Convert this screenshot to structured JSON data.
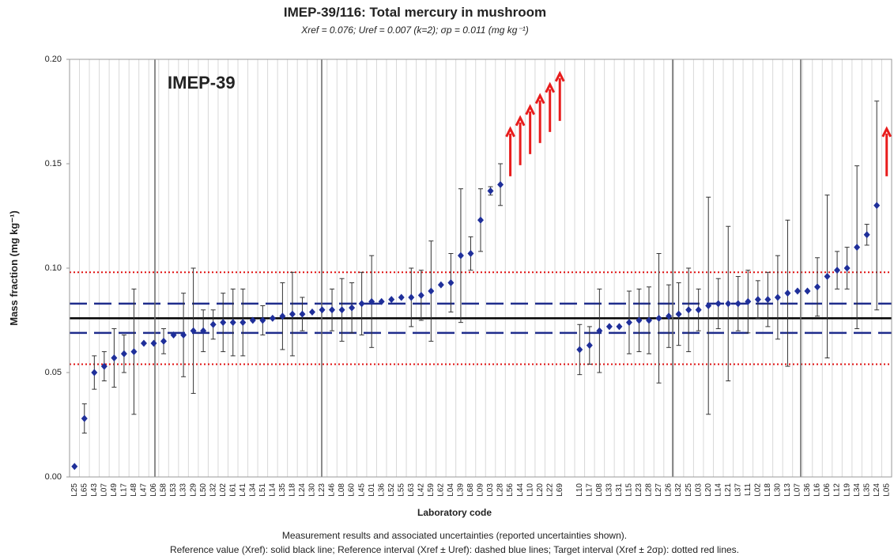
{
  "chart_data": {
    "type": "errorbar",
    "title": "IMEP-39/116: Total mercury in mushroom",
    "subtitle": "Xref = 0.076; Uref = 0.007 (k=2); σp = 0.011 (mg kg⁻¹)",
    "y_label": "Mass fraction (mg kg⁻¹)",
    "x_label": "Laboratory code",
    "annotation": "IMEP-39",
    "footnotes": [
      "Measurement results and associated uncertainties (reported uncertainties shown).",
      "Reference value (Xref): solid black line; Reference interval (Xref ± Uref): dashed blue lines; Target interval (Xref ± 2σp): dotted red lines."
    ],
    "categories": [
      "L25",
      "L65",
      "L43",
      "L07",
      "L49",
      "L17",
      "L48",
      "L47",
      "L06",
      "L58",
      "L53",
      "L33",
      "L29",
      "L50",
      "L32",
      "L02",
      "L61",
      "L41",
      "L34",
      "L51",
      "L14",
      "L35",
      "L18",
      "L24",
      "L30",
      "L23",
      "L46",
      "L08",
      "L60",
      "L45",
      "L01",
      "L36",
      "L52",
      "L55",
      "L63",
      "L42",
      "L59",
      "L62",
      "L04",
      "L39",
      "L68",
      "L09",
      "L03",
      "L28",
      "L56",
      "L44",
      "L10",
      "L20",
      "L22",
      "L69",
      null,
      "L10",
      "L17",
      "L08",
      "L33",
      "L31",
      "L15",
      "L23",
      "L28",
      "L27",
      "L26",
      "L32",
      "L25",
      "L03",
      "L20",
      "L14",
      "L21",
      "L37",
      "L11",
      "L02",
      "L18",
      "L30",
      "L13",
      "L07",
      "L36",
      "L16",
      "L06",
      "L12",
      "L19",
      "L34",
      "L35",
      "L24",
      "L05"
    ],
    "values": [
      0.005,
      0.028,
      0.05,
      0.053,
      0.057,
      0.059,
      0.06,
      0.064,
      0.064,
      0.065,
      0.068,
      0.068,
      0.07,
      0.07,
      0.073,
      0.074,
      0.074,
      0.074,
      0.075,
      0.075,
      0.076,
      0.077,
      0.078,
      0.078,
      0.079,
      0.08,
      0.08,
      0.08,
      0.081,
      0.083,
      0.084,
      0.084,
      0.085,
      0.086,
      0.086,
      0.087,
      0.089,
      0.092,
      0.093,
      0.106,
      0.107,
      0.123,
      0.137,
      0.14,
      null,
      null,
      null,
      null,
      null,
      null,
      null,
      0.061,
      0.063,
      0.07,
      0.072,
      0.072,
      0.074,
      0.075,
      0.075,
      0.076,
      0.077,
      0.078,
      0.08,
      0.08,
      0.082,
      0.083,
      0.083,
      0.083,
      0.084,
      0.085,
      0.085,
      0.086,
      0.088,
      0.089,
      0.089,
      0.091,
      0.096,
      0.099,
      0.1,
      0.11,
      0.116,
      0.13,
      null
    ],
    "errors": [
      null,
      0.007,
      0.008,
      0.007,
      0.014,
      0.009,
      0.03,
      null,
      null,
      0.006,
      null,
      0.02,
      0.03,
      0.01,
      0.007,
      0.014,
      0.016,
      0.016,
      null,
      0.007,
      null,
      0.016,
      0.02,
      0.008,
      null,
      null,
      0.01,
      0.015,
      0.012,
      0.015,
      0.022,
      null,
      null,
      null,
      0.014,
      0.012,
      0.024,
      null,
      0.014,
      0.032,
      0.008,
      0.015,
      0.002,
      0.01,
      null,
      null,
      null,
      null,
      null,
      null,
      null,
      0.012,
      0.009,
      0.02,
      null,
      null,
      0.015,
      0.015,
      0.016,
      0.031,
      0.015,
      0.015,
      0.02,
      0.01,
      0.052,
      0.012,
      0.037,
      0.013,
      0.015,
      0.009,
      0.013,
      0.02,
      0.035,
      null,
      null,
      0.014,
      0.039,
      0.009,
      0.01,
      0.039,
      0.005,
      0.05,
      null
    ],
    "color": "#1f2f9a",
    "reference_lines": [
      {
        "value": 0.076,
        "color": "#000000",
        "style": "solid"
      },
      {
        "value": 0.069,
        "color": "#1f2d8c",
        "style": "dashed"
      },
      {
        "value": 0.083,
        "color": "#1f2d8c",
        "style": "dashed"
      },
      {
        "value": 0.054,
        "color": "#e01010",
        "style": "dotted"
      },
      {
        "value": 0.098,
        "color": "#e01010",
        "style": "dotted"
      }
    ],
    "arrow_color": "#e81c1c",
    "ylim": [
      0,
      0.2
    ],
    "yticks": [
      {
        "value": 0,
        "label": "0.00"
      },
      0.05,
      {
        "value": 0.1,
        "label": "0.10"
      },
      0.15,
      {
        "value": 0.2,
        "label": "0.20"
      }
    ],
    "grid": true
  }
}
